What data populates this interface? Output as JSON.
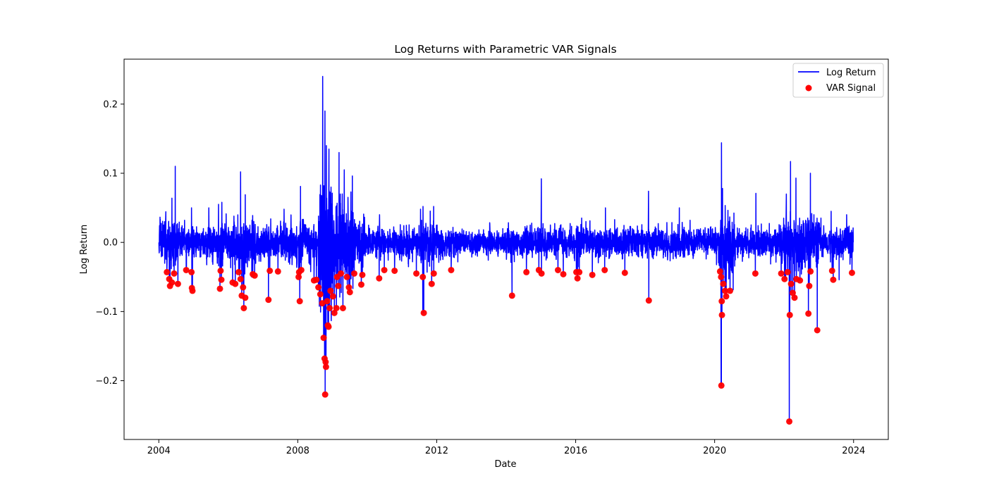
{
  "chart_data": {
    "type": "line",
    "title": "Log Returns with Parametric VAR Signals",
    "xlabel": "Date",
    "ylabel": "Log Return",
    "xlim": [
      "2003-01-01",
      "2024-12-31"
    ],
    "ylim": [
      -0.285,
      0.265
    ],
    "x_ticks": [
      "2004",
      "2008",
      "2012",
      "2016",
      "2020",
      "2024"
    ],
    "y_ticks": [
      "−0.2",
      "−0.1",
      "0.0",
      "0.1",
      "0.2"
    ],
    "y_tick_values": [
      -0.2,
      -0.1,
      0.0,
      0.1,
      0.2
    ],
    "grid": false,
    "legend_position": "top-right",
    "colors": {
      "line": "#0000ff",
      "signal": "#ff0000",
      "signal_edge": "#cc0000"
    },
    "series": [
      {
        "name": "Log Return",
        "kind": "line",
        "points": [
          [
            "2004-01-02",
            0.0
          ],
          [
            "2004-02-20",
            0.025
          ],
          [
            "2004-04-28",
            -0.063
          ],
          [
            "2004-05-18",
            0.064
          ],
          [
            "2004-06-22",
            0.11
          ],
          [
            "2004-07-20",
            -0.06
          ],
          [
            "2004-10-15",
            -0.04
          ],
          [
            "2004-12-10",
            0.05
          ],
          [
            "2004-12-14",
            -0.07
          ],
          [
            "2005-06-10",
            0.05
          ],
          [
            "2005-09-20",
            0.055
          ],
          [
            "2005-10-05",
            -0.067
          ],
          [
            "2005-10-25",
            0.058
          ],
          [
            "2006-03-15",
            -0.06
          ],
          [
            "2006-05-10",
            0.102
          ],
          [
            "2006-06-13",
            -0.095
          ],
          [
            "2006-06-28",
            0.069
          ],
          [
            "2007-02-27",
            -0.083
          ],
          [
            "2007-08-10",
            0.048
          ],
          [
            "2008-01-22",
            -0.085
          ],
          [
            "2008-01-30",
            0.081
          ],
          [
            "2008-06-20",
            -0.055
          ],
          [
            "2008-09-15",
            -0.075
          ],
          [
            "2008-09-19",
            0.24
          ],
          [
            "2008-09-29",
            -0.138
          ],
          [
            "2008-10-13",
            0.19
          ],
          [
            "2008-10-15",
            -0.22
          ],
          [
            "2008-10-24",
            -0.18
          ],
          [
            "2008-10-28",
            0.14
          ],
          [
            "2008-11-20",
            -0.122
          ],
          [
            "2008-11-24",
            0.135
          ],
          [
            "2008-12-16",
            0.08
          ],
          [
            "2009-01-20",
            -0.102
          ],
          [
            "2009-03-10",
            0.13
          ],
          [
            "2009-03-23",
            0.07
          ],
          [
            "2009-04-20",
            -0.095
          ],
          [
            "2009-05-04",
            0.105
          ],
          [
            "2009-06-22",
            -0.065
          ],
          [
            "2009-07-13",
            0.073
          ],
          [
            "2009-10-30",
            -0.061
          ],
          [
            "2010-05-06",
            -0.052
          ],
          [
            "2010-05-10",
            0.04
          ],
          [
            "2011-08-08",
            -0.102
          ],
          [
            "2011-08-10",
            0.052
          ],
          [
            "2011-11-09",
            -0.06
          ],
          [
            "2011-11-30",
            0.052
          ],
          [
            "2012-06-01",
            -0.04
          ],
          [
            "2014-03-03",
            -0.077
          ],
          [
            "2014-08-01",
            -0.043
          ],
          [
            "2015-01-05",
            0.092
          ],
          [
            "2015-01-07",
            -0.045
          ],
          [
            "2015-08-24",
            -0.046
          ],
          [
            "2016-01-20",
            -0.052
          ],
          [
            "2016-06-24",
            -0.047
          ],
          [
            "2016-11-09",
            0.05
          ],
          [
            "2017-06-01",
            -0.044
          ],
          [
            "2018-02-05",
            0.074
          ],
          [
            "2018-02-08",
            -0.084
          ],
          [
            "2018-12-26",
            0.05
          ],
          [
            "2020-03-09",
            -0.207
          ],
          [
            "2020-03-13",
            0.144
          ],
          [
            "2020-03-16",
            -0.105
          ],
          [
            "2020-03-24",
            0.078
          ],
          [
            "2020-06-11",
            -0.07
          ],
          [
            "2021-03-04",
            -0.045
          ],
          [
            "2021-03-10",
            0.071
          ],
          [
            "2022-01-24",
            0.07
          ],
          [
            "2022-02-24",
            -0.259
          ],
          [
            "2022-03-09",
            0.117
          ],
          [
            "2022-03-15",
            -0.073
          ],
          [
            "2022-05-05",
            0.093
          ],
          [
            "2022-06-16",
            -0.055
          ],
          [
            "2022-09-13",
            -0.103
          ],
          [
            "2022-10-04",
            0.1
          ],
          [
            "2022-11-10",
            0.04
          ],
          [
            "2022-12-15",
            -0.127
          ],
          [
            "2023-05-10",
            0.045
          ],
          [
            "2023-08-02",
            -0.054
          ],
          [
            "2023-10-20",
            0.04
          ],
          [
            "2023-12-15",
            -0.044
          ],
          [
            "2023-12-29",
            0.0
          ]
        ]
      },
      {
        "name": "VAR Signal",
        "kind": "scatter",
        "points": [
          [
            "2004-03-26",
            -0.043
          ],
          [
            "2004-04-20",
            -0.053
          ],
          [
            "2004-04-28",
            -0.063
          ],
          [
            "2004-05-18",
            -0.058
          ],
          [
            "2004-06-10",
            -0.045
          ],
          [
            "2004-07-20",
            -0.06
          ],
          [
            "2004-10-15",
            -0.04
          ],
          [
            "2004-12-10",
            -0.043
          ],
          [
            "2004-12-14",
            -0.066
          ],
          [
            "2004-12-20",
            -0.07
          ],
          [
            "2005-10-05",
            -0.067
          ],
          [
            "2005-10-12",
            -0.041
          ],
          [
            "2005-10-20",
            -0.054
          ],
          [
            "2006-02-15",
            -0.058
          ],
          [
            "2006-03-15",
            -0.06
          ],
          [
            "2006-04-20",
            -0.043
          ],
          [
            "2006-05-10",
            -0.053
          ],
          [
            "2006-05-22",
            -0.077
          ],
          [
            "2006-06-05",
            -0.065
          ],
          [
            "2006-06-13",
            -0.095
          ],
          [
            "2006-06-28",
            -0.08
          ],
          [
            "2006-09-15",
            -0.046
          ],
          [
            "2006-10-05",
            -0.048
          ],
          [
            "2007-02-27",
            -0.083
          ],
          [
            "2007-03-13",
            -0.041
          ],
          [
            "2007-06-07",
            -0.042
          ],
          [
            "2008-01-10",
            -0.05
          ],
          [
            "2008-01-15",
            -0.043
          ],
          [
            "2008-01-22",
            -0.085
          ],
          [
            "2008-02-07",
            -0.04
          ],
          [
            "2008-06-20",
            -0.055
          ],
          [
            "2008-07-15",
            -0.054
          ],
          [
            "2008-08-05",
            -0.065
          ],
          [
            "2008-08-25",
            -0.075
          ],
          [
            "2008-09-15",
            -0.088
          ],
          [
            "2008-09-29",
            -0.138
          ],
          [
            "2008-10-09",
            -0.168
          ],
          [
            "2008-10-15",
            -0.22
          ],
          [
            "2008-10-20",
            -0.173
          ],
          [
            "2008-10-24",
            -0.18
          ],
          [
            "2008-11-05",
            -0.085
          ],
          [
            "2008-11-12",
            -0.12
          ],
          [
            "2008-11-20",
            -0.122
          ],
          [
            "2008-12-01",
            -0.095
          ],
          [
            "2008-12-10",
            -0.07
          ],
          [
            "2009-01-05",
            -0.078
          ],
          [
            "2009-01-20",
            -0.102
          ],
          [
            "2009-02-10",
            -0.095
          ],
          [
            "2009-02-17",
            -0.05
          ],
          [
            "2009-03-02",
            -0.063
          ],
          [
            "2009-03-30",
            -0.045
          ],
          [
            "2009-04-20",
            -0.095
          ],
          [
            "2009-06-01",
            -0.05
          ],
          [
            "2009-06-22",
            -0.065
          ],
          [
            "2009-07-02",
            -0.072
          ],
          [
            "2009-08-17",
            -0.045
          ],
          [
            "2009-10-30",
            -0.061
          ],
          [
            "2009-11-10",
            -0.047
          ],
          [
            "2010-05-06",
            -0.052
          ],
          [
            "2010-06-29",
            -0.04
          ],
          [
            "2010-10-15",
            -0.041
          ],
          [
            "2011-06-01",
            -0.045
          ],
          [
            "2011-08-08",
            -0.05
          ],
          [
            "2011-08-18",
            -0.102
          ],
          [
            "2011-11-09",
            -0.06
          ],
          [
            "2011-12-01",
            -0.045
          ],
          [
            "2012-06-01",
            -0.04
          ],
          [
            "2014-03-03",
            -0.077
          ],
          [
            "2014-08-01",
            -0.043
          ],
          [
            "2014-12-10",
            -0.04
          ],
          [
            "2015-01-07",
            -0.045
          ],
          [
            "2015-06-29",
            -0.04
          ],
          [
            "2015-08-24",
            -0.046
          ],
          [
            "2016-01-08",
            -0.043
          ],
          [
            "2016-01-20",
            -0.052
          ],
          [
            "2016-02-08",
            -0.043
          ],
          [
            "2016-06-24",
            -0.047
          ],
          [
            "2016-11-01",
            -0.04
          ],
          [
            "2017-06-01",
            -0.044
          ],
          [
            "2018-02-08",
            -0.084
          ],
          [
            "2020-02-27",
            -0.042
          ],
          [
            "2020-03-09",
            -0.05
          ],
          [
            "2020-03-12",
            -0.207
          ],
          [
            "2020-03-16",
            -0.085
          ],
          [
            "2020-03-18",
            -0.105
          ],
          [
            "2020-04-01",
            -0.06
          ],
          [
            "2020-04-20",
            -0.07
          ],
          [
            "2020-05-01",
            -0.078
          ],
          [
            "2020-06-11",
            -0.07
          ],
          [
            "2021-03-04",
            -0.045
          ],
          [
            "2021-12-01",
            -0.045
          ],
          [
            "2022-01-05",
            -0.053
          ],
          [
            "2022-02-07",
            -0.043
          ],
          [
            "2022-02-24",
            -0.259
          ],
          [
            "2022-03-01",
            -0.105
          ],
          [
            "2022-03-15",
            -0.06
          ],
          [
            "2022-04-01",
            -0.073
          ],
          [
            "2022-04-20",
            -0.08
          ],
          [
            "2022-05-10",
            -0.053
          ],
          [
            "2022-06-16",
            -0.055
          ],
          [
            "2022-09-13",
            -0.103
          ],
          [
            "2022-09-22",
            -0.063
          ],
          [
            "2022-10-05",
            -0.042
          ],
          [
            "2022-12-15",
            -0.127
          ],
          [
            "2023-05-20",
            -0.041
          ],
          [
            "2023-06-01",
            -0.054
          ],
          [
            "2023-12-15",
            -0.044
          ]
        ]
      }
    ]
  }
}
